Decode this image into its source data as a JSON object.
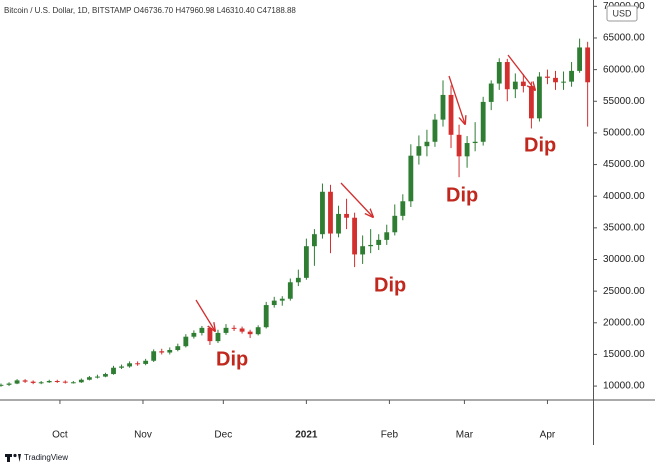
{
  "chart_data": {
    "type": "candlestick",
    "title": "Bitcoin / U.S. Dollar, 1D, BITSTAMP  O46736.70  H47960.98  L46310.40  C47188.88",
    "currency": "USD",
    "up_color": "#2e7d32",
    "down_color": "#d32f2f",
    "x": [
      0,
      3,
      6,
      9,
      12,
      15,
      18,
      21,
      24,
      27,
      30,
      33,
      36,
      39,
      42,
      45,
      48,
      51,
      54,
      57,
      60,
      63,
      66,
      69,
      72,
      75,
      78,
      81,
      84,
      87,
      90,
      93,
      96,
      99,
      102,
      105,
      108,
      111,
      114,
      117,
      120,
      123,
      126,
      129,
      132,
      135,
      138,
      141,
      144,
      147,
      150,
      153,
      156,
      159,
      162,
      165,
      168,
      171,
      174,
      177,
      180,
      183,
      186,
      189,
      192,
      195,
      198,
      201,
      204,
      207,
      210,
      213,
      216,
      219
    ],
    "open": [
      10100,
      10200,
      10400,
      10900,
      10700,
      10500,
      10600,
      10800,
      10700,
      10600,
      10600,
      11000,
      11400,
      11500,
      11900,
      12900,
      13100,
      13600,
      13500,
      14000,
      15500,
      15300,
      15700,
      16300,
      17800,
      18400,
      19200,
      17100,
      18400,
      19200,
      19100,
      18600,
      18200,
      19300,
      22800,
      23500,
      23800,
      26400,
      27100,
      32100,
      34000,
      40700,
      34100,
      37200,
      36600,
      30800,
      32100,
      32300,
      33100,
      34300,
      36900,
      39200,
      46400,
      47900,
      48600,
      52100,
      56000,
      49700,
      46300,
      48400,
      48600,
      54900,
      57800,
      61200,
      56900,
      58100,
      57400,
      52300,
      58900,
      58700,
      58000,
      58100,
      59800,
      63500
    ],
    "high": [
      10400,
      10600,
      11100,
      11100,
      10900,
      10800,
      11000,
      11000,
      10900,
      10800,
      11200,
      11600,
      11800,
      12100,
      13200,
      13400,
      13900,
      13900,
      14300,
      15800,
      15900,
      16100,
      16700,
      18200,
      18800,
      19500,
      19400,
      18900,
      19800,
      19600,
      19400,
      18900,
      19600,
      23300,
      24100,
      24200,
      27000,
      28400,
      33300,
      34800,
      42000,
      41800,
      38500,
      39600,
      37400,
      33800,
      34800,
      34000,
      35500,
      38700,
      40300,
      48200,
      49600,
      50500,
      53000,
      58300,
      57500,
      51300,
      49500,
      51700,
      55700,
      58300,
      61800,
      61700,
      59400,
      59300,
      58100,
      59600,
      60000,
      59800,
      59700,
      61200,
      64900,
      64400
    ],
    "low": [
      9900,
      10000,
      10300,
      10500,
      10300,
      10300,
      10500,
      10500,
      10400,
      10400,
      10500,
      10900,
      11200,
      11400,
      11800,
      12700,
      12900,
      13200,
      13300,
      13800,
      15000,
      15000,
      15500,
      16100,
      17500,
      18000,
      16500,
      16800,
      18100,
      18700,
      18300,
      17600,
      18000,
      19100,
      22400,
      22700,
      23500,
      25800,
      26800,
      29000,
      33300,
      31000,
      33500,
      34800,
      28800,
      29300,
      31000,
      31500,
      32300,
      33800,
      36200,
      38300,
      45000,
      46300,
      47800,
      51000,
      47600,
      43000,
      44500,
      47100,
      48000,
      53600,
      56800,
      55000,
      55500,
      56400,
      50700,
      51800,
      57700,
      56800,
      56800,
      57300,
      59500,
      51000
    ],
    "close": [
      10200,
      10400,
      10900,
      10700,
      10500,
      10600,
      10800,
      10700,
      10600,
      10600,
      11000,
      11400,
      11500,
      11900,
      12900,
      13100,
      13600,
      13500,
      14000,
      15500,
      15300,
      15700,
      16300,
      17800,
      18400,
      19200,
      17100,
      18400,
      19200,
      19100,
      18600,
      18200,
      19300,
      22800,
      23500,
      23800,
      26400,
      27100,
      32100,
      34000,
      40700,
      34100,
      37200,
      36600,
      30800,
      32100,
      32300,
      33100,
      34300,
      36900,
      39200,
      46400,
      47900,
      48600,
      52100,
      56000,
      49700,
      46300,
      48400,
      48600,
      54900,
      57800,
      61200,
      56900,
      58100,
      57400,
      52300,
      58900,
      58700,
      58000,
      58100,
      59800,
      63500,
      58000
    ],
    "xlim": [
      0,
      221
    ],
    "xticks": [
      {
        "value": 22,
        "label": "Oct"
      },
      {
        "value": 53,
        "label": "Nov"
      },
      {
        "value": 83,
        "label": "Dec"
      },
      {
        "value": 114,
        "label": "2021"
      },
      {
        "value": 145,
        "label": "Feb"
      },
      {
        "value": 173,
        "label": "Mar"
      },
      {
        "value": 204,
        "label": "Apr"
      }
    ],
    "ylim": [
      7800,
      71000
    ],
    "yticks": [
      {
        "value": 10000,
        "label": "10000.00"
      },
      {
        "value": 15000,
        "label": "15000.00"
      },
      {
        "value": 20000,
        "label": "20000.00"
      },
      {
        "value": 25000,
        "label": "25000.00"
      },
      {
        "value": 30000,
        "label": "30000.00"
      },
      {
        "value": 35000,
        "label": "35000.00"
      },
      {
        "value": 40000,
        "label": "40000.00"
      },
      {
        "value": 45000,
        "label": "45000.00"
      },
      {
        "value": 50000,
        "label": "50000.00"
      },
      {
        "value": 55000,
        "label": "55000.00"
      },
      {
        "value": 60000,
        "label": "60000.00"
      },
      {
        "value": 65000,
        "label": "65000.00"
      },
      {
        "value": 70000,
        "label": "70000.00"
      }
    ],
    "annotations": [
      "Dip",
      "Dip",
      "Dip",
      "Dip"
    ]
  },
  "footer": "TradingView"
}
